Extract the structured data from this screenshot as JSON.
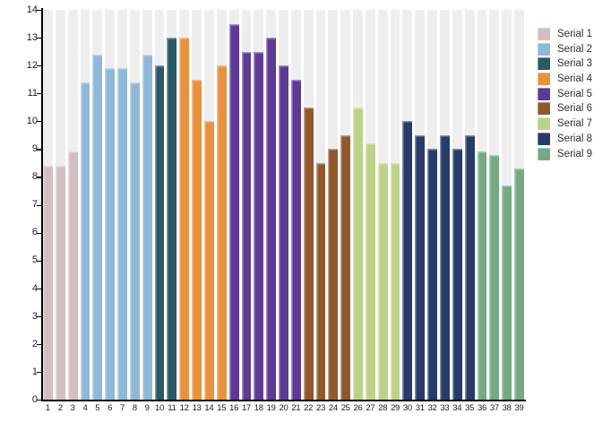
{
  "chart_data": {
    "type": "bar",
    "title": "",
    "xlabel": "",
    "ylabel": "",
    "ylim": [
      0,
      14
    ],
    "y_ticks": [
      0,
      1,
      2,
      3,
      4,
      5,
      6,
      7,
      8,
      9,
      10,
      11,
      12,
      13,
      14
    ],
    "grid": false,
    "legend_position": "right",
    "background_column_color": "#eeeeee",
    "axis_color": "#000000",
    "x_labels": [
      "1",
      "2",
      "3",
      "4",
      "5",
      "6",
      "7",
      "8",
      "9",
      "10",
      "11",
      "12",
      "13",
      "14",
      "15",
      "16",
      "17",
      "18",
      "19",
      "20",
      "21",
      "22",
      "23",
      "24",
      "25",
      "26",
      "27",
      "28",
      "29",
      "30",
      "31",
      "32",
      "33",
      "34",
      "35",
      "36",
      "37",
      "38",
      "39"
    ],
    "series": [
      {
        "name": "Serial 1",
        "color": "#d2bfbf",
        "values": [
          8.4,
          8.4,
          8.9
        ]
      },
      {
        "name": "Serial 2",
        "color": "#8fb8d8",
        "values": [
          11.4,
          12.4,
          11.9,
          11.9,
          11.4,
          12.4
        ]
      },
      {
        "name": "Serial 3",
        "color": "#2b5967",
        "values": [
          12.0,
          13.0
        ]
      },
      {
        "name": "Serial 4",
        "color": "#e8923f",
        "values": [
          13.0,
          11.5,
          10.0,
          12.0
        ]
      },
      {
        "name": "Serial 5",
        "color": "#5e3a96",
        "values": [
          13.5,
          12.5,
          12.5,
          13.0,
          12.0,
          11.5
        ]
      },
      {
        "name": "Serial 6",
        "color": "#91572f",
        "values": [
          10.5,
          8.5,
          9.0,
          9.5
        ]
      },
      {
        "name": "Serial 7",
        "color": "#bdd187",
        "values": [
          10.5,
          9.2,
          8.5,
          8.5
        ]
      },
      {
        "name": "Serial 8",
        "color": "#273c6a",
        "values": [
          10.0,
          9.5,
          9.0,
          9.5,
          9.0,
          9.5
        ]
      },
      {
        "name": "Serial 9",
        "color": "#74a984",
        "values": [
          8.9,
          8.8,
          7.7,
          8.3
        ]
      }
    ],
    "legend_items": [
      "Serial 1",
      "Serial 2",
      "Serial 3",
      "Serial 4",
      "Serial 5",
      "Serial 6",
      "Serial 7",
      "Serial 8",
      "Serial 9"
    ]
  }
}
